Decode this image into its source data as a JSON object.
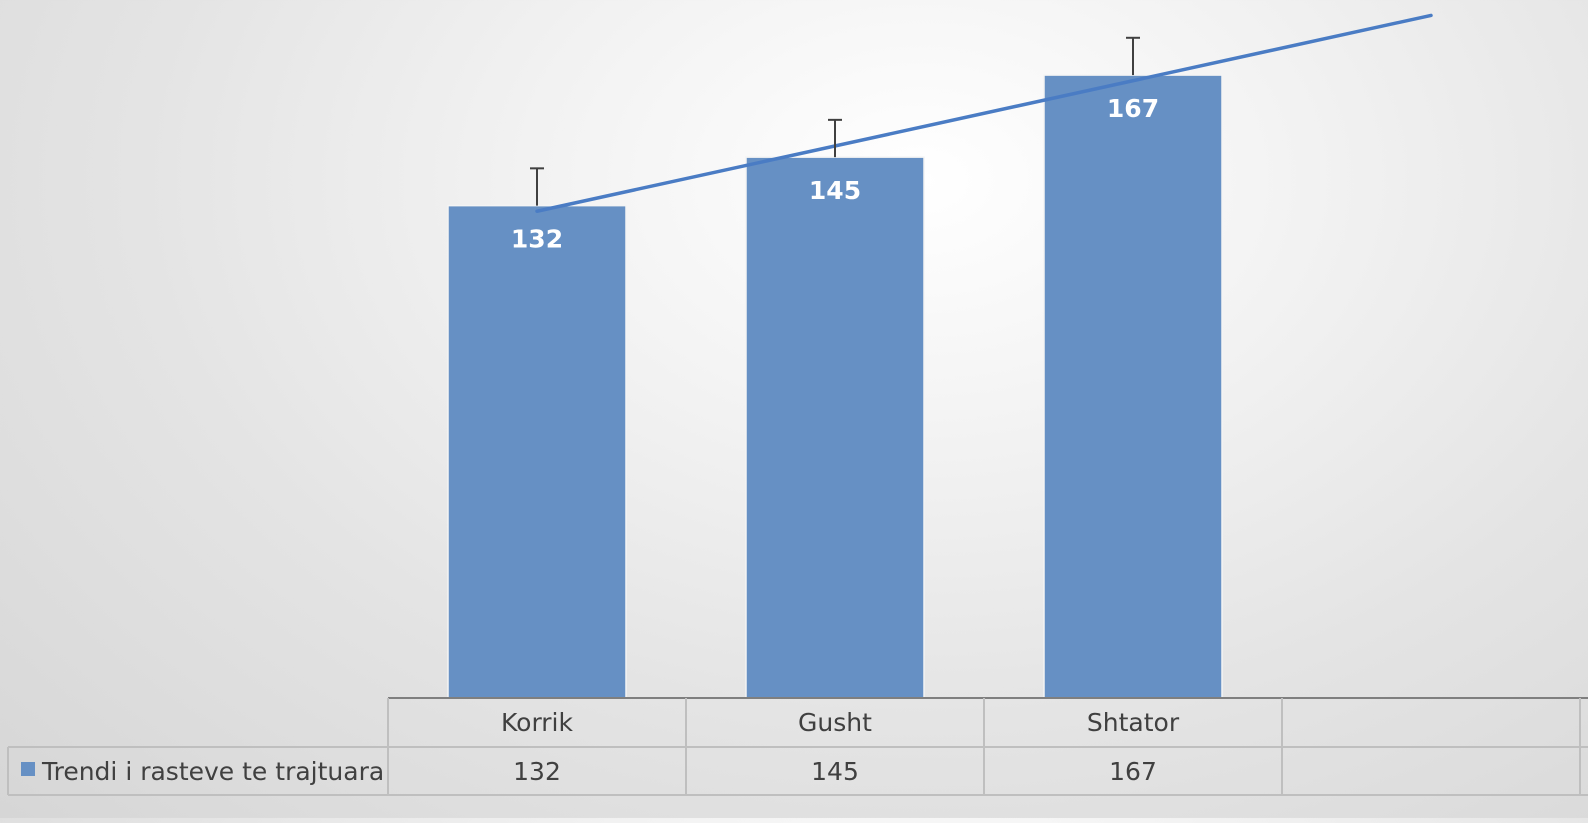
{
  "chart_data": {
    "type": "bar",
    "categories": [
      "Korrik",
      "Gusht",
      "Shtator"
    ],
    "series": [
      {
        "name": "Trendi i rasteve te trajtuara",
        "values": [
          132,
          145,
          167
        ]
      }
    ],
    "data_labels": [
      "132",
      "145",
      "167"
    ],
    "error_bar_upper": [
      142,
      155,
      177
    ],
    "trendline": "linear",
    "data_table": true,
    "colors": {
      "bar": "#6690c4",
      "trendline": "#4a7cc4",
      "error_bar": "#404040",
      "data_label": "#ffffff",
      "table_line": "#bfbfbf",
      "axis_line": "#7f7f7f",
      "table_text": "#404040"
    }
  }
}
